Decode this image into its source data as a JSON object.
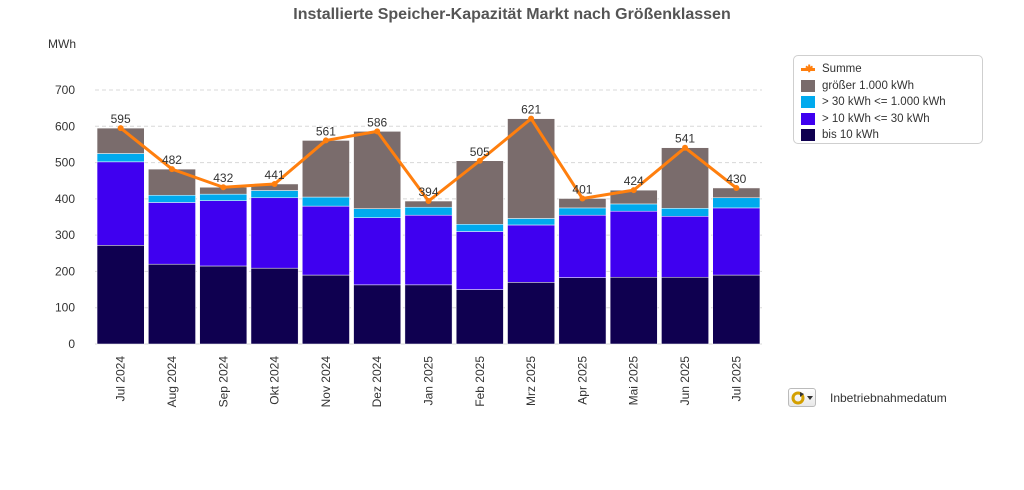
{
  "chart_data": {
    "type": "bar",
    "stacked": true,
    "title": "Installierte Speicher-Kapazität Markt nach Größenklassen",
    "ylabel": "MWh",
    "xlabel": "",
    "ylim": [
      0,
      700
    ],
    "yticks": [
      0,
      100,
      200,
      300,
      400,
      500,
      600,
      700
    ],
    "grid": true,
    "legend_position": "top-right",
    "categories": [
      "Jul 2024",
      "Aug 2024",
      "Sep 2024",
      "Okt 2024",
      "Nov 2024",
      "Dez 2024",
      "Jan 2025",
      "Feb 2025",
      "Mrz 2025",
      "Apr 2025",
      "Mai 2025",
      "Jun 2025",
      "Jul 2025"
    ],
    "series": [
      {
        "name": "bis 10 kWh",
        "color": "#0f0050",
        "values": [
          272,
          220,
          215,
          209,
          190,
          163,
          163,
          150,
          170,
          183,
          184,
          184,
          190
        ]
      },
      {
        "name": "> 10 kWh <= 30 kWh",
        "color": "#3f00f0",
        "values": [
          230,
          170,
          180,
          194,
          190,
          185,
          192,
          160,
          158,
          172,
          182,
          168,
          185
        ]
      },
      {
        "name": "> 30 kWh <= 1.000 kWh",
        "color": "#00aaee",
        "values": [
          23,
          20,
          18,
          20,
          25,
          25,
          22,
          20,
          18,
          20,
          20,
          22,
          28
        ]
      },
      {
        "name": "größer 1.000 kWh",
        "color": "#7a6c6c",
        "values": [
          70,
          72,
          19,
          18,
          156,
          213,
          17,
          175,
          275,
          26,
          38,
          167,
          27
        ]
      }
    ],
    "line_series": {
      "name": "Summe",
      "color": "#ff7f0e",
      "values": [
        595,
        482,
        432,
        441,
        561,
        586,
        394,
        505,
        621,
        401,
        424,
        541,
        430
      ]
    },
    "line_labels": [
      "595",
      "482",
      "432",
      "441",
      "561",
      "586",
      "394",
      "505",
      "621",
      "401",
      "424",
      "541",
      "430"
    ],
    "ytick_labels": [
      "0",
      "100",
      "200",
      "300",
      "400",
      "500",
      "600",
      "700"
    ]
  },
  "legend": {
    "items": [
      {
        "label": "Summe",
        "color": "#ff7f0e",
        "kind": "line"
      },
      {
        "label": "größer 1.000 kWh",
        "color": "#7a6c6c",
        "kind": "bar"
      },
      {
        "label": "> 30 kWh <= 1.000 kWh",
        "color": "#00aaee",
        "kind": "bar"
      },
      {
        "label": "> 10 kWh <= 30 kWh",
        "color": "#3f00f0",
        "kind": "bar"
      },
      {
        "label": "bis 10 kWh",
        "color": "#0f0050",
        "kind": "bar"
      }
    ]
  },
  "dimension_control": {
    "label": "Inbetriebnahmedatum",
    "icon": "refresh-dropdown-icon"
  }
}
